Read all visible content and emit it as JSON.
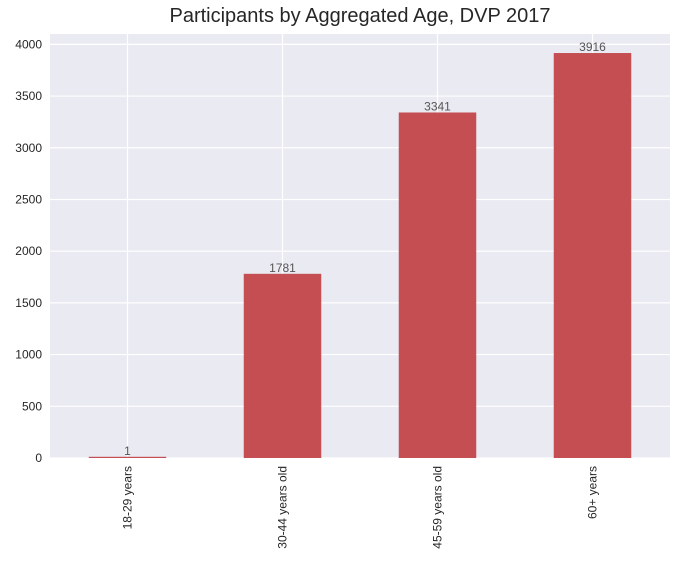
{
  "chart_data": {
    "type": "bar",
    "title": "Participants by Aggregated Age, DVP 2017",
    "xlabel": "",
    "ylabel": "",
    "categories": [
      "18-29 years",
      "30-44 years old",
      "45-59 years old",
      "60+ years"
    ],
    "values": [
      1,
      1781,
      3341,
      3916
    ],
    "data_labels": [
      "1",
      "1781",
      "3341",
      "3916"
    ],
    "ylim": [
      0,
      4100
    ],
    "yticks": [
      0,
      500,
      1000,
      1500,
      2000,
      2500,
      3000,
      3500,
      4000
    ],
    "grid": true,
    "legend": "none",
    "colors": {
      "bar": "#c44e52",
      "plot_background": "#eaeaf2",
      "grid": "#ffffff",
      "text": "#262626",
      "data_label": "#555555"
    }
  }
}
